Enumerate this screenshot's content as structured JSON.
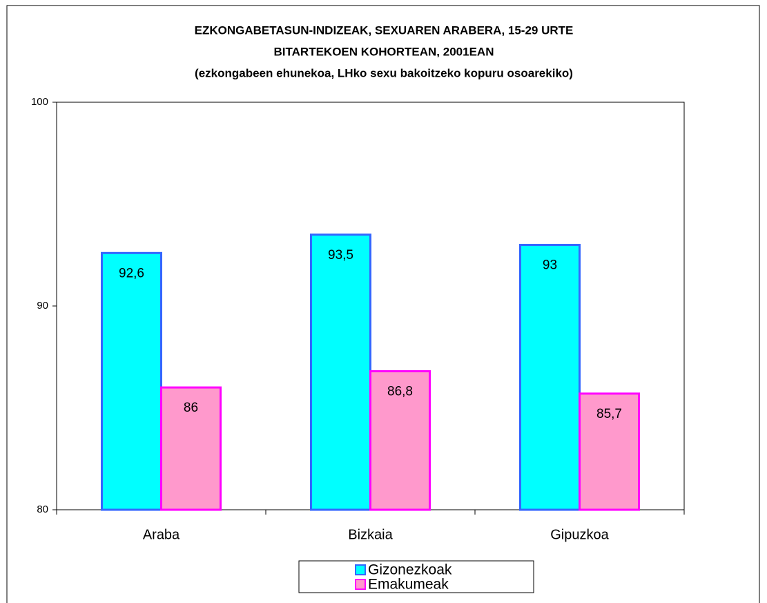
{
  "chart_data": {
    "type": "bar",
    "title": [
      "EZKONGABETASUN-INDIZEAK, SEXUAREN ARABERA, 15-29 URTE",
      "BITARTEKOEN KOHORTEAN, 2001EAN",
      "(ezkongabeen ehunekoa, LHko sexu bakoitzeko kopuru osoarekiko)"
    ],
    "categories": [
      "Araba",
      "Bizkaia",
      "Gipuzkoa"
    ],
    "series": [
      {
        "name": "Gizonezkoak",
        "color": "#00ffff",
        "edge": "#3366ff",
        "values": [
          92.6,
          93.5,
          93
        ],
        "value_labels": [
          "92,6",
          "93,5",
          "93"
        ]
      },
      {
        "name": "Emakumeak",
        "color": "#ff99cc",
        "edge": "#ff00ff",
        "values": [
          86,
          86.8,
          85.7
        ],
        "value_labels": [
          "86",
          "86,8",
          "85,7"
        ]
      }
    ],
    "ylim": [
      80,
      100
    ],
    "yticks": [
      80,
      90,
      100
    ],
    "grid": false
  }
}
